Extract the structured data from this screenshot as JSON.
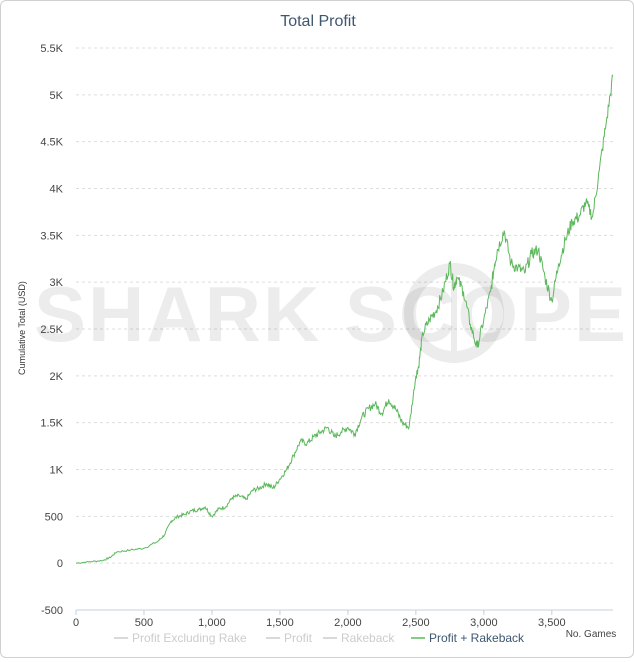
{
  "chart_data": {
    "type": "line",
    "title": "Total Profit",
    "ylabel": "Cumulative Total (USD)",
    "xlabel": "No. Games",
    "watermark": "SHARK SCOPE",
    "xlim": [
      0,
      3950
    ],
    "ylim": [
      -500,
      5500
    ],
    "grid": true,
    "legend_position": "bottom",
    "y_ticks": [
      {
        "value": -500,
        "label": "-500"
      },
      {
        "value": 0,
        "label": "0"
      },
      {
        "value": 500,
        "label": "500"
      },
      {
        "value": 1000,
        "label": "1K"
      },
      {
        "value": 1500,
        "label": "1.5K"
      },
      {
        "value": 2000,
        "label": "2K"
      },
      {
        "value": 2500,
        "label": "2.5K"
      },
      {
        "value": 3000,
        "label": "3K"
      },
      {
        "value": 3500,
        "label": "3.5K"
      },
      {
        "value": 4000,
        "label": "4K"
      },
      {
        "value": 4500,
        "label": "4.5K"
      },
      {
        "value": 5000,
        "label": "5K"
      },
      {
        "value": 5500,
        "label": "5.5K"
      }
    ],
    "x_ticks": [
      {
        "value": 0,
        "label": "0"
      },
      {
        "value": 500,
        "label": "500"
      },
      {
        "value": 1000,
        "label": "1,000"
      },
      {
        "value": 1500,
        "label": "1,500"
      },
      {
        "value": 2000,
        "label": "2,000"
      },
      {
        "value": 2500,
        "label": "2,500"
      },
      {
        "value": 3000,
        "label": "3,000"
      },
      {
        "value": 3500,
        "label": "3,500"
      }
    ],
    "legend": [
      {
        "name": "Profit Excluding Rake",
        "color": "#cccccc",
        "text_color": "#cccccc"
      },
      {
        "name": "Profit",
        "color": "#cccccc",
        "text_color": "#cccccc"
      },
      {
        "name": "Rakeback",
        "color": "#cccccc",
        "text_color": "#cccccc"
      },
      {
        "name": "Profit + Rakeback",
        "color": "#5cb85c",
        "text_color": "#3e576f"
      }
    ],
    "series": [
      {
        "name": "Profit + Rakeback",
        "color": "#5cb85c",
        "x": [
          0,
          100,
          200,
          250,
          300,
          400,
          500,
          600,
          650,
          700,
          750,
          800,
          850,
          900,
          950,
          1000,
          1050,
          1100,
          1150,
          1200,
          1250,
          1300,
          1350,
          1400,
          1450,
          1500,
          1550,
          1600,
          1650,
          1700,
          1750,
          1800,
          1850,
          1900,
          1950,
          2000,
          2050,
          2100,
          2150,
          2200,
          2250,
          2300,
          2350,
          2400,
          2450,
          2500,
          2520,
          2550,
          2600,
          2650,
          2700,
          2750,
          2780,
          2800,
          2850,
          2900,
          2950,
          3000,
          3050,
          3080,
          3100,
          3150,
          3200,
          3250,
          3300,
          3350,
          3400,
          3450,
          3500,
          3550,
          3600,
          3650,
          3700,
          3750,
          3800,
          3850,
          3900,
          3950
        ],
        "y": [
          0,
          15,
          30,
          60,
          120,
          140,
          160,
          230,
          300,
          450,
          500,
          520,
          560,
          570,
          600,
          500,
          580,
          600,
          700,
          720,
          680,
          780,
          800,
          850,
          800,
          900,
          1000,
          1150,
          1300,
          1280,
          1350,
          1400,
          1450,
          1350,
          1400,
          1450,
          1380,
          1550,
          1650,
          1700,
          1600,
          1750,
          1650,
          1500,
          1450,
          2000,
          2100,
          2450,
          2600,
          2700,
          2900,
          3200,
          2950,
          3050,
          2900,
          2550,
          2300,
          2600,
          2900,
          3200,
          3350,
          3550,
          3200,
          3150,
          3100,
          3300,
          3350,
          3050,
          2800,
          3200,
          3450,
          3650,
          3700,
          3850,
          3700,
          4200,
          4700,
          5200
        ]
      }
    ]
  }
}
